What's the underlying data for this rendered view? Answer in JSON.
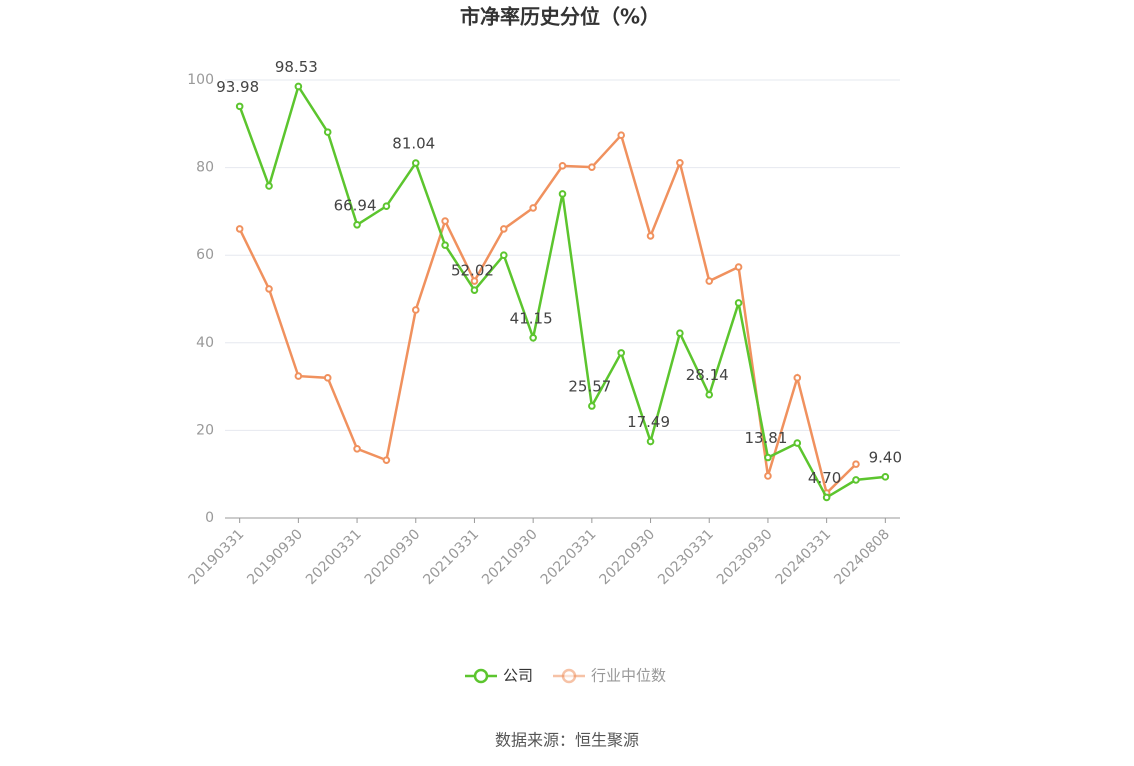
{
  "chart_data": {
    "type": "line",
    "title": "市净率历史分位（%）",
    "categories": [
      "20190331",
      null,
      "20190930",
      null,
      "20200331",
      null,
      "20200930",
      null,
      "20210331",
      null,
      "20210930",
      null,
      "20220331",
      null,
      "20220930",
      null,
      "20230331",
      null,
      "20230930",
      null,
      "20240331",
      null,
      "20240808"
    ],
    "series": [
      {
        "name": "公司",
        "color": "#5cc52e",
        "values": [
          93.98,
          75.8,
          98.53,
          88.1,
          66.94,
          71.2,
          81.04,
          62.3,
          52.02,
          60.0,
          41.15,
          74.0,
          25.57,
          37.7,
          17.49,
          42.2,
          28.14,
          49.1,
          13.81,
          17.1,
          4.7,
          8.7,
          9.4
        ],
        "value_labels": [
          "93.98",
          null,
          "98.53",
          null,
          "66.94",
          null,
          "81.04",
          null,
          "52.02",
          null,
          "41.15",
          null,
          "25.57",
          null,
          "17.49",
          null,
          "28.14",
          null,
          "13.81",
          null,
          "4.70",
          null,
          "9.40"
        ]
      },
      {
        "name": "行业中位数",
        "color": "#f0915e",
        "values": [
          66.0,
          52.3,
          32.4,
          32.0,
          15.8,
          13.2,
          47.5,
          67.8,
          54.1,
          66.0,
          70.8,
          80.4,
          80.1,
          87.4,
          64.4,
          81.1,
          54.1,
          57.3,
          9.6,
          32.0,
          5.7,
          12.3,
          null
        ]
      }
    ],
    "ylim": [
      0,
      100
    ],
    "yticks": [
      0,
      20,
      40,
      60,
      80,
      100
    ],
    "grid": true,
    "source": "数据来源：恒生聚源"
  }
}
